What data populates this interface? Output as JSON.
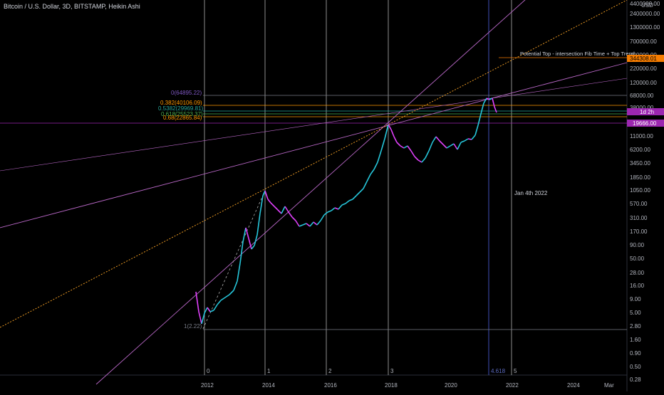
{
  "header": {
    "title": "Bitcoin / U.S. Dollar, 3D, BITSTAMP, Heikin Ashi"
  },
  "price_axis": {
    "currency": "USD",
    "labels": [
      "4400000.00",
      "2400000.00",
      "1300000.00",
      "700000.00",
      "400000.00",
      "220000.00",
      "120000.00",
      "68000.00",
      "38000.00",
      "11000.00",
      "6200.00",
      "3450.00",
      "1850.00",
      "1050.00",
      "570.00",
      "310.00",
      "170.00",
      "90.00",
      "50.00",
      "28.00",
      "16.00",
      "9.00",
      "5.00",
      "2.80",
      "1.60",
      "0.90",
      "0.50",
      "0.28"
    ]
  },
  "time_axis": {
    "labels": [
      "2012",
      "2014",
      "2016",
      "2018",
      "2020",
      "2022",
      "2024",
      "Mar"
    ]
  },
  "badges": {
    "target_price": "344308.01",
    "countdown": "1d 2h",
    "current_price": "19666.00"
  },
  "fib_levels": {
    "zero": "0(64895.22)",
    "l0382": "0.382(40106.09)",
    "l05382": "0.5382(29969.81)",
    "l0618": "0.618(25523.37)",
    "l068": "0.68(22865.84)",
    "one": "1(2.22)"
  },
  "fib_time": [
    "0",
    "1",
    "2",
    "3",
    "4.618",
    "5"
  ],
  "annotations": {
    "potential_top": "Potential Top - intersection Fib Time + Top Trend",
    "date_note": "Jan 4th 2022"
  },
  "colors": {
    "background": "#000000",
    "bull_candle": "#26c6da",
    "bear_candle": "#e040fb",
    "trendline": "#ba68c8",
    "fib_line": "#ffa726",
    "target_badge": "#f57c00",
    "price_badge": "#9c27b0",
    "time_zone_line": "#b0b0b0",
    "fib_time_highlight": "#3f51b5"
  }
}
